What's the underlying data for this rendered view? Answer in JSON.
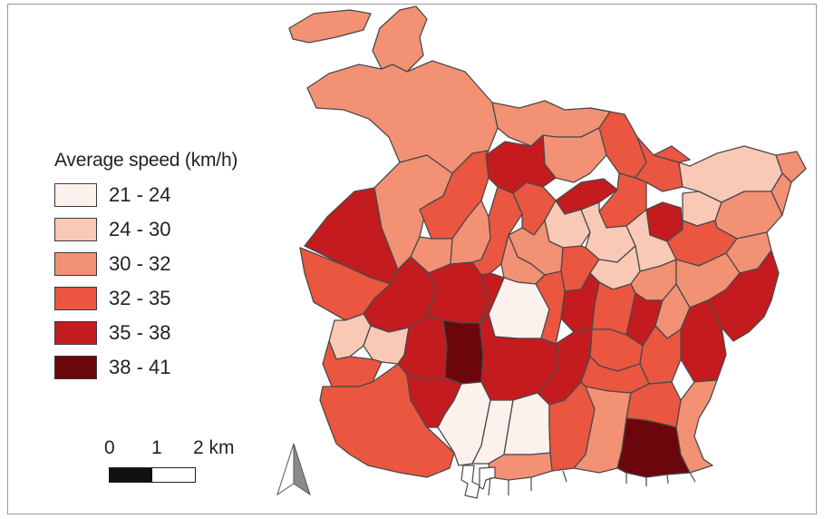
{
  "legend": {
    "title": "Average speed (km/h)",
    "classes": [
      {
        "label": "21 - 24",
        "color": "#fdf1ee"
      },
      {
        "label": "24 - 30",
        "color": "#f9c9b6"
      },
      {
        "label": "30 - 32",
        "color": "#f39174"
      },
      {
        "label": "32 - 35",
        "color": "#ea5640"
      },
      {
        "label": "35 - 38",
        "color": "#c41b1f"
      },
      {
        "label": "38 - 41",
        "color": "#6b060c"
      }
    ]
  },
  "scale": {
    "ticks": [
      "0",
      "1",
      "2 km"
    ],
    "segment_colors": [
      "#111111",
      "#ffffff"
    ]
  },
  "north_arrow": {
    "icon": "north-arrow-icon"
  },
  "colors": {
    "border": "#4a4a4a",
    "sea": "#ffffff",
    "outline": "#9a9a9a"
  }
}
